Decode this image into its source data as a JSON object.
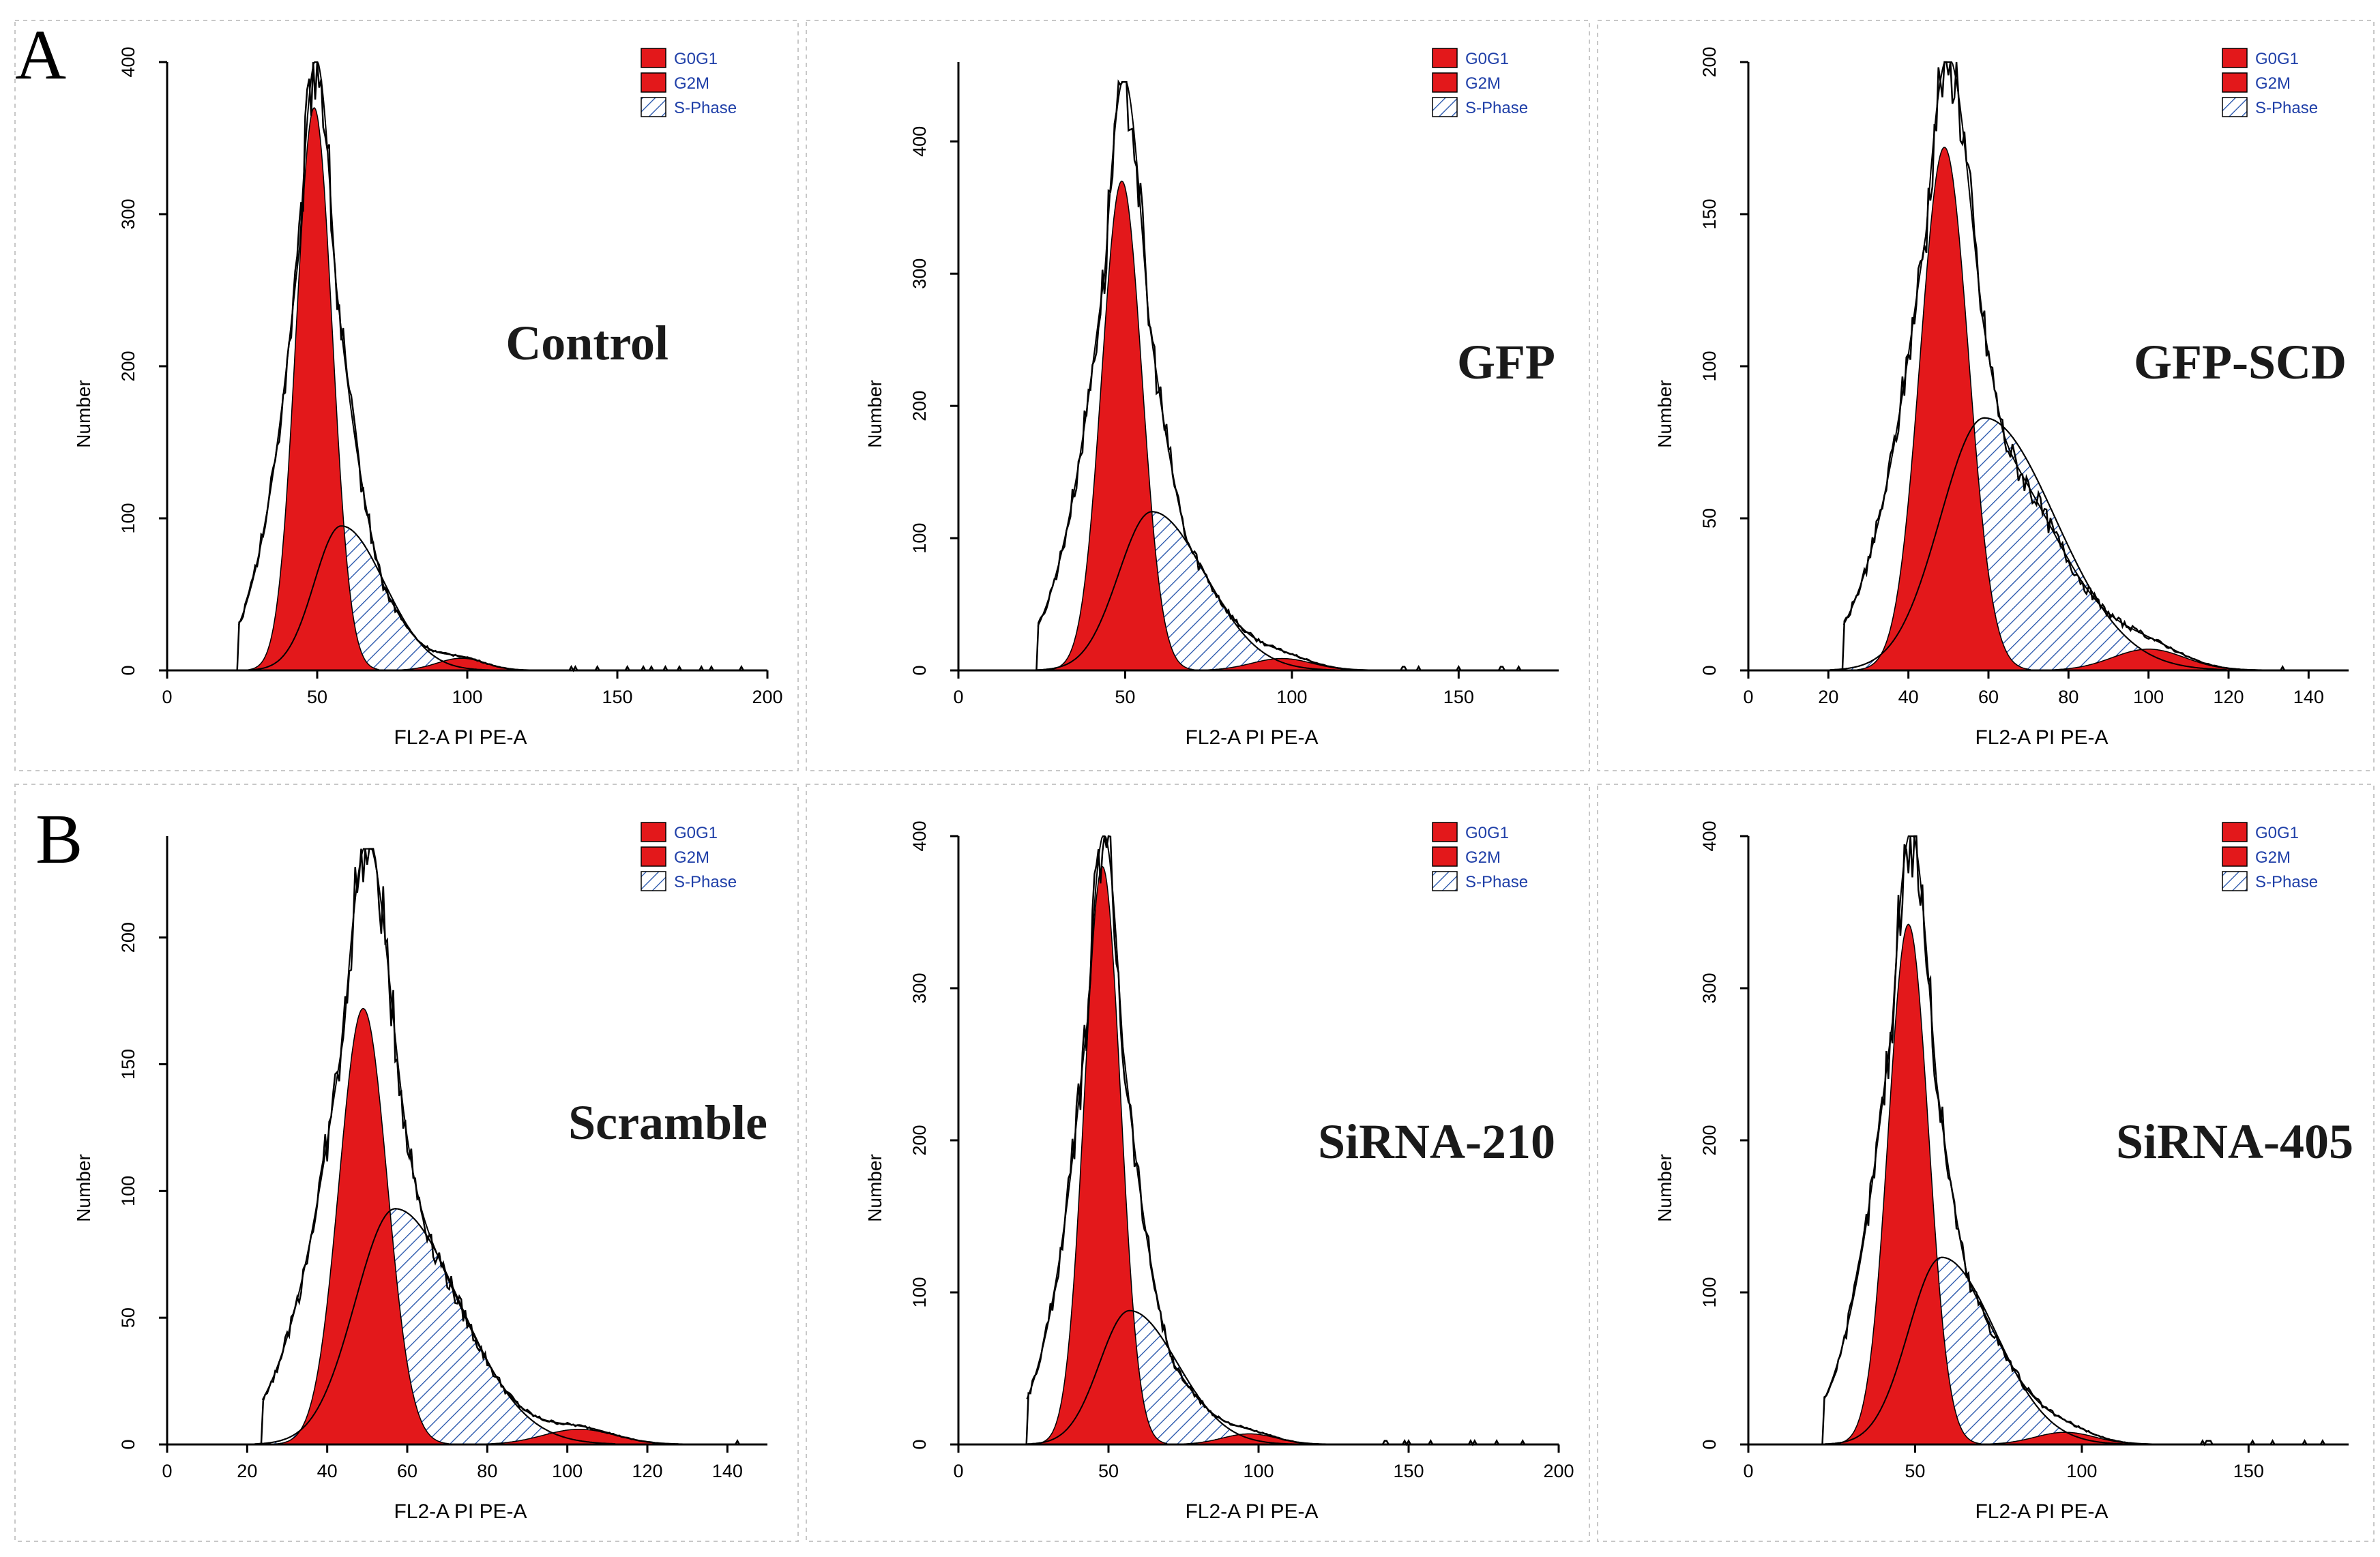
{
  "figure": {
    "row_labels": [
      "A",
      "B"
    ],
    "colors": {
      "g0g1": "#e3181b",
      "g2m": "#e3181b",
      "s_phase": "#1f4fa8",
      "envelope": "#000000",
      "legend_text": "#1f3fa8"
    }
  },
  "chart_data": [
    {
      "type": "area",
      "panel": "A",
      "title": "Control",
      "xlabel": "FL2-A PI PE-A",
      "ylabel": "Number",
      "xlim": [
        0,
        200
      ],
      "ylim": [
        0,
        400
      ],
      "xticks": [
        0,
        50,
        100,
        150,
        200
      ],
      "yticks": [
        0,
        100,
        200,
        300,
        400
      ],
      "legend": [
        "G0G1",
        "G2M",
        "S-Phase"
      ],
      "legend_position": "top-right",
      "series": [
        {
          "name": "G0G1",
          "peak_x": 49,
          "peak_y": 370,
          "width": 6
        },
        {
          "name": "S-Phase",
          "peak_x": 58,
          "peak_y": 95,
          "width": 9
        },
        {
          "name": "G2M",
          "peak_x": 98,
          "peak_y": 8,
          "width": 8
        },
        {
          "name": "Envelope",
          "peak_x": 49,
          "peak_y": 400
        }
      ]
    },
    {
      "type": "area",
      "panel": "A",
      "title": "GFP",
      "xlabel": "FL2-A PI PE-A",
      "ylabel": "Number",
      "xlim": [
        0,
        180
      ],
      "ylim": [
        0,
        460
      ],
      "xticks": [
        0,
        50,
        100,
        150
      ],
      "yticks": [
        0,
        100,
        200,
        300,
        400
      ],
      "legend": [
        "G0G1",
        "G2M",
        "S-Phase"
      ],
      "legend_position": "top-right",
      "series": [
        {
          "name": "G0G1",
          "peak_x": 49,
          "peak_y": 370,
          "width": 6
        },
        {
          "name": "S-Phase",
          "peak_x": 58,
          "peak_y": 120,
          "width": 10
        },
        {
          "name": "G2M",
          "peak_x": 97,
          "peak_y": 9,
          "width": 9
        },
        {
          "name": "Envelope",
          "peak_x": 50,
          "peak_y": 445
        }
      ]
    },
    {
      "type": "area",
      "panel": "A",
      "title": "GFP-SCD",
      "xlabel": "FL2-A PI PE-A",
      "ylabel": "Number",
      "xlim": [
        0,
        150
      ],
      "ylim": [
        0,
        200
      ],
      "xticks": [
        0,
        20,
        40,
        60,
        80,
        100,
        120,
        140
      ],
      "yticks": [
        0,
        50,
        100,
        150,
        200
      ],
      "legend": [
        "G0G1",
        "G2M",
        "S-Phase"
      ],
      "legend_position": "top-right",
      "series": [
        {
          "name": "G0G1",
          "peak_x": 49,
          "peak_y": 172,
          "width": 6
        },
        {
          "name": "S-Phase",
          "peak_x": 59,
          "peak_y": 83,
          "width": 11
        },
        {
          "name": "G2M",
          "peak_x": 100,
          "peak_y": 7,
          "width": 9
        },
        {
          "name": "Envelope",
          "peak_x": 50,
          "peak_y": 200
        }
      ]
    },
    {
      "type": "area",
      "panel": "B",
      "title": "Scramble",
      "xlabel": "FL2-A PI PE-A",
      "ylabel": "Number",
      "xlim": [
        0,
        150
      ],
      "ylim": [
        0,
        240
      ],
      "xticks": [
        0,
        20,
        40,
        60,
        80,
        100,
        120,
        140
      ],
      "yticks": [
        0,
        50,
        100,
        150,
        200
      ],
      "legend": [
        "G0G1",
        "G2M",
        "S-Phase"
      ],
      "legend_position": "top-right",
      "series": [
        {
          "name": "G0G1",
          "peak_x": 49,
          "peak_y": 172,
          "width": 6
        },
        {
          "name": "S-Phase",
          "peak_x": 57,
          "peak_y": 93,
          "width": 10
        },
        {
          "name": "G2M",
          "peak_x": 103,
          "peak_y": 6,
          "width": 9
        },
        {
          "name": "Envelope",
          "peak_x": 50,
          "peak_y": 235
        }
      ]
    },
    {
      "type": "area",
      "panel": "B",
      "title": "SiRNA-210",
      "xlabel": "FL2-A PI PE-A",
      "ylabel": "Number",
      "xlim": [
        0,
        200
      ],
      "ylim": [
        0,
        400
      ],
      "xticks": [
        0,
        50,
        100,
        150,
        200
      ],
      "yticks": [
        0,
        100,
        200,
        300,
        400
      ],
      "legend": [
        "G0G1",
        "G2M",
        "S-Phase"
      ],
      "legend_position": "top-right",
      "series": [
        {
          "name": "G0G1",
          "peak_x": 48,
          "peak_y": 380,
          "width": 6
        },
        {
          "name": "S-Phase",
          "peak_x": 57,
          "peak_y": 88,
          "width": 10
        },
        {
          "name": "G2M",
          "peak_x": 97,
          "peak_y": 7,
          "width": 9
        },
        {
          "name": "Envelope",
          "peak_x": 49,
          "peak_y": 400
        }
      ]
    },
    {
      "type": "area",
      "panel": "B",
      "title": "SiRNA-405",
      "xlabel": "FL2-A PI PE-A",
      "ylabel": "Number",
      "xlim": [
        0,
        180
      ],
      "ylim": [
        0,
        400
      ],
      "xticks": [
        0,
        50,
        100,
        150
      ],
      "yticks": [
        0,
        100,
        200,
        300,
        400
      ],
      "legend": [
        "G0G1",
        "G2M",
        "S-Phase"
      ],
      "legend_position": "top-right",
      "series": [
        {
          "name": "G0G1",
          "peak_x": 48,
          "peak_y": 342,
          "width": 6
        },
        {
          "name": "S-Phase",
          "peak_x": 58,
          "peak_y": 123,
          "width": 10
        },
        {
          "name": "G2M",
          "peak_x": 95,
          "peak_y": 8,
          "width": 9
        },
        {
          "name": "Envelope",
          "peak_x": 50,
          "peak_y": 400
        }
      ]
    }
  ]
}
